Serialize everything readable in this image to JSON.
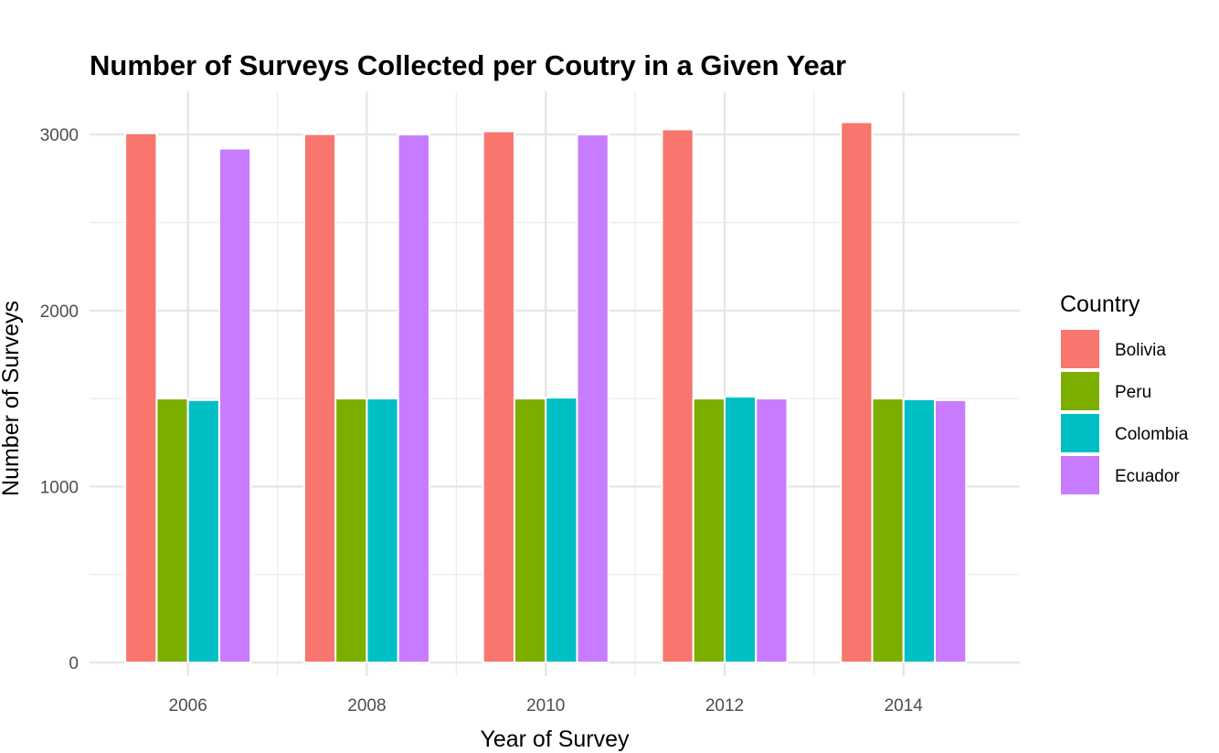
{
  "chart_data": {
    "type": "bar",
    "title": "Number of Surveys Collected per Coutry in a Given Year",
    "xlabel": "Year of Survey",
    "ylabel": "Number of Surveys",
    "categories": [
      "2006",
      "2008",
      "2010",
      "2012",
      "2014"
    ],
    "x": [
      2006,
      2008,
      2010,
      2012,
      2014
    ],
    "xlim": [
      2004.9,
      2015.3
    ],
    "xticks": [
      2006,
      2008,
      2010,
      2012,
      2014
    ],
    "ylim": [
      0,
      3180
    ],
    "yticks": [
      0,
      1000,
      2000,
      3000
    ],
    "grid": true,
    "legend": {
      "title": "Country",
      "position": "right"
    },
    "series": [
      {
        "name": "Bolivia",
        "color": "#F8766D",
        "values": [
          3007,
          3002,
          3018,
          3029,
          3070
        ]
      },
      {
        "name": "Peru",
        "color": "#7CAE00",
        "values": [
          1500,
          1500,
          1500,
          1500,
          1500
        ]
      },
      {
        "name": "Colombia",
        "color": "#00BFC4",
        "values": [
          1491,
          1500,
          1505,
          1511,
          1496
        ]
      },
      {
        "name": "Ecuador",
        "color": "#C77CFF",
        "values": [
          2920,
          3000,
          3000,
          1500,
          1490
        ]
      }
    ]
  }
}
